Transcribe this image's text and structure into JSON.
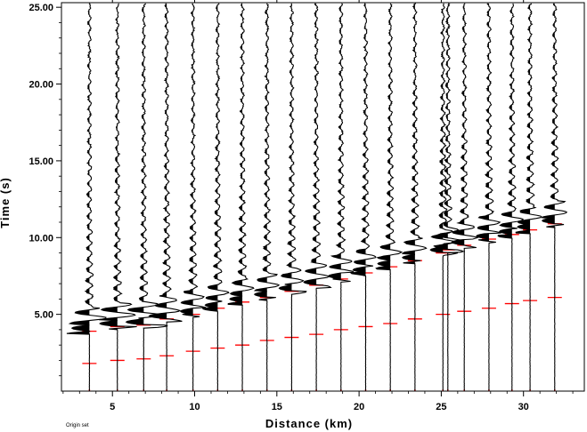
{
  "chart_data": {
    "type": "line",
    "xlabel": "Distance (km)",
    "ylabel": "Time (s)",
    "xlim": [
      1.9,
      33.7
    ],
    "ylim": [
      0,
      25.3
    ],
    "y_inverted": false,
    "x_ticks": [
      5,
      10,
      15,
      20,
      25,
      30
    ],
    "x_tick_labels": [
      "5",
      "10",
      "15",
      "20",
      "25",
      "30"
    ],
    "y_ticks": [
      5.0,
      10.0,
      15.0,
      20.0,
      25.0
    ],
    "y_tick_labels": [
      "5.00",
      "10.00",
      "15.00",
      "20.00",
      "25.00"
    ],
    "grid": false,
    "trace_color": "#000000",
    "pick_color": "#ff0000",
    "traces": [
      {
        "distance": 3.6,
        "first_arrival": 3.9
      },
      {
        "distance": 5.3,
        "first_arrival": 4.2
      },
      {
        "distance": 6.9,
        "first_arrival": 4.3
      },
      {
        "distance": 8.3,
        "first_arrival": 4.7
      },
      {
        "distance": 9.9,
        "first_arrival": 5.0
      },
      {
        "distance": 11.4,
        "first_arrival": 5.4
      },
      {
        "distance": 12.9,
        "first_arrival": 5.8
      },
      {
        "distance": 14.4,
        "first_arrival": 6.1
      },
      {
        "distance": 15.9,
        "first_arrival": 6.5
      },
      {
        "distance": 17.4,
        "first_arrival": 6.9
      },
      {
        "distance": 18.9,
        "first_arrival": 7.3
      },
      {
        "distance": 20.4,
        "first_arrival": 7.7
      },
      {
        "distance": 21.9,
        "first_arrival": 8.1
      },
      {
        "distance": 23.4,
        "first_arrival": 8.5
      },
      {
        "distance": 25.1,
        "first_arrival": 9.0
      },
      {
        "distance": 25.4,
        "first_arrival": 9.2
      },
      {
        "distance": 26.4,
        "first_arrival": 9.5
      },
      {
        "distance": 27.9,
        "first_arrival": 9.9
      },
      {
        "distance": 29.3,
        "first_arrival": 10.2
      },
      {
        "distance": 30.4,
        "first_arrival": 10.5
      },
      {
        "distance": 31.9,
        "first_arrival": 10.9
      }
    ],
    "secondary_picks": [
      {
        "distance": 3.6,
        "time": 1.8
      },
      {
        "distance": 5.3,
        "time": 2.0
      },
      {
        "distance": 6.9,
        "time": 2.1
      },
      {
        "distance": 8.3,
        "time": 2.3
      },
      {
        "distance": 9.9,
        "time": 2.6
      },
      {
        "distance": 11.4,
        "time": 2.8
      },
      {
        "distance": 12.9,
        "time": 3.0
      },
      {
        "distance": 14.4,
        "time": 3.3
      },
      {
        "distance": 15.9,
        "time": 3.5
      },
      {
        "distance": 17.4,
        "time": 3.7
      },
      {
        "distance": 18.9,
        "time": 4.0
      },
      {
        "distance": 20.4,
        "time": 4.2
      },
      {
        "distance": 21.9,
        "time": 4.4
      },
      {
        "distance": 23.4,
        "time": 4.7
      },
      {
        "distance": 25.1,
        "time": 5.0
      },
      {
        "distance": 26.4,
        "time": 5.2
      },
      {
        "distance": 27.9,
        "time": 5.4
      },
      {
        "distance": 29.3,
        "time": 5.7
      },
      {
        "distance": 30.4,
        "time": 5.9
      },
      {
        "distance": 31.9,
        "time": 6.1
      }
    ]
  },
  "footer": {
    "note": "Origin set"
  }
}
